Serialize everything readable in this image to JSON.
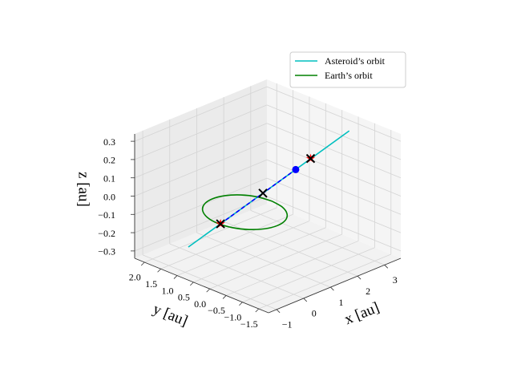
{
  "chart_data": {
    "type": "line3d",
    "xlabel": "x [au]",
    "ylabel": "y [au]",
    "zlabel": "z [au]",
    "xlim": [
      -1.3,
      3.6
    ],
    "ylim": [
      -1.8,
      2.3
    ],
    "zlim": [
      -0.34,
      0.34
    ],
    "xticks": [
      {
        "value": -1,
        "label": "−1"
      },
      0,
      1,
      2,
      3
    ],
    "yticks": [
      {
        "value": -1.5,
        "label": "−1.5"
      },
      {
        "value": -1.0,
        "label": "−1.0"
      },
      {
        "value": -0.5,
        "label": "−0.5"
      },
      {
        "value": 0.0,
        "label": "0.0"
      },
      0.5,
      {
        "value": 1.0,
        "label": "1.0"
      },
      1.5,
      {
        "value": 2.0,
        "label": "2.0"
      }
    ],
    "zticks": [
      {
        "value": -0.3,
        "label": "−0.3"
      },
      {
        "value": -0.2,
        "label": "−0.2"
      },
      {
        "value": -0.1,
        "label": "−0.1"
      },
      {
        "value": 0.0,
        "label": "0.0"
      },
      0.1,
      0.2,
      0.3
    ],
    "grid": true,
    "legend": "upper right",
    "series": [
      {
        "name": "Asteroid’s orbit",
        "color": "#00bfbf",
        "style": "line",
        "x": [
          -0.4,
          2.9
        ],
        "y": [
          1.4,
          -0.8
        ],
        "z": [
          -0.268,
          0.327
        ]
      },
      {
        "name": "Earth’s orbit",
        "color": "#008000",
        "style": "line",
        "x": [
          1,
          0.924,
          0.707,
          0.383,
          0,
          -0.383,
          -0.707,
          -0.924,
          -1,
          -0.924,
          -0.707,
          -0.383,
          0,
          0.383,
          0.707,
          0.924,
          1
        ],
        "y": [
          0,
          0.383,
          0.707,
          0.924,
          1,
          0.924,
          0.707,
          0.383,
          0,
          -0.383,
          -0.707,
          -0.924,
          -1,
          -0.924,
          -0.707,
          -0.383,
          0
        ],
        "z": [
          0,
          0,
          0,
          0,
          0,
          0,
          0,
          0,
          0,
          0,
          0,
          0,
          0,
          0,
          0,
          0,
          0
        ]
      },
      {
        "color": "#0000ff",
        "style": "dashed",
        "x": [
          0.26,
          1.8
        ],
        "y": [
          0.96,
          -0.07
        ],
        "z": [
          -0.149,
          0.129
        ]
      },
      {
        "color": "#ff0000",
        "style": "star",
        "x": [
          0.26,
          2.11
        ],
        "y": [
          0.96,
          -0.27
        ],
        "z": [
          -0.149,
          0.185
        ]
      },
      {
        "color": "#000000",
        "style": "x",
        "x": [
          0.26,
          1.13,
          2.11
        ],
        "y": [
          0.96,
          0.38,
          -0.27
        ],
        "z": [
          -0.149,
          0.008,
          0.185
        ]
      },
      {
        "color": "#0000ff",
        "style": "dot",
        "x": [
          1.8
        ],
        "y": [
          -0.07
        ],
        "z": [
          0.129
        ]
      }
    ]
  }
}
